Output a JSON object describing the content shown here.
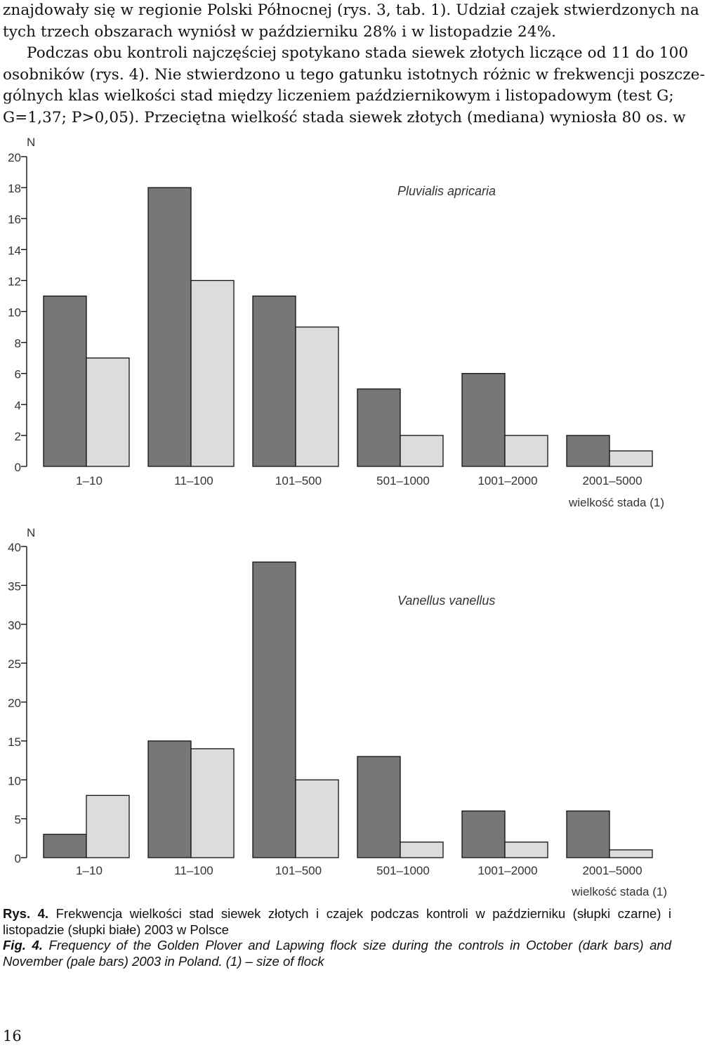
{
  "body_text": [
    "znajdowały się w regionie Polski Północnej (rys. 3, tab. 1). Udział czajek stwierdzonych na",
    "tych trzech obszarach wyniósł w październiku 28% i w listopadzie 24%.",
    "Podczas obu kontroli najczęściej spotykano stada siewek złotych liczące od 11 do 100",
    "osobników (rys. 4). Nie stwierdzono u tego gatunku istotnych różnic w frekwencji poszcze-",
    "gólnych klas wielkości stad między liczeniem październikowym i listopadowym (test G;",
    "G=1,37; P>0,05). Przeciętna wielkość stada siewek złotych (mediana) wyniosła 80 os. w"
  ],
  "chart_data": [
    {
      "type": "bar",
      "title": "Pluvialis apricaria",
      "ylabel": "N",
      "xlabel": "wielkość stada (1)",
      "categories": [
        "1–10",
        "11–100",
        "101–500",
        "501–1000",
        "1001–2000",
        "2001–5000"
      ],
      "yticks": [
        "0",
        "2",
        "4",
        "6",
        "8",
        "10",
        "12",
        "14",
        "16",
        "18",
        "20"
      ],
      "ylim": [
        0,
        20
      ],
      "series": [
        {
          "values": [
            11,
            18,
            11,
            5,
            6,
            2
          ],
          "color": "#777777"
        },
        {
          "values": [
            7,
            12,
            9,
            2,
            2,
            1
          ],
          "color": "#dcdcdc"
        }
      ]
    },
    {
      "type": "bar",
      "title": "Vanellus vanellus",
      "ylabel": "N",
      "xlabel": "wielkość stada (1)",
      "categories": [
        "1–10",
        "11–100",
        "101–500",
        "501–1000",
        "1001–2000",
        "2001–5000"
      ],
      "yticks": [
        "0",
        "5",
        "10",
        "15",
        "20",
        "25",
        "30",
        "35",
        "40"
      ],
      "ylim": [
        0,
        40
      ],
      "series": [
        {
          "values": [
            3,
            15,
            38,
            13,
            6,
            6
          ],
          "color": "#777777"
        },
        {
          "values": [
            8,
            14,
            10,
            2,
            2,
            1
          ],
          "color": "#dcdcdc"
        }
      ]
    }
  ],
  "caption_pl": {
    "label": "Rys. 4.",
    "text": "Frekwencja wielkości stad siewek złotych i czajek podczas kontroli w październiku (słupki czarne) i listopadzie (słupki białe) 2003 w Polsce"
  },
  "caption_en": {
    "label": "Fig. 4.",
    "text": "Frequency of the Golden Plover and Lapwing flock size during the controls in October (dark bars) and November (pale bars) 2003 in Poland. (1) – size of flock"
  },
  "page_number": "16"
}
